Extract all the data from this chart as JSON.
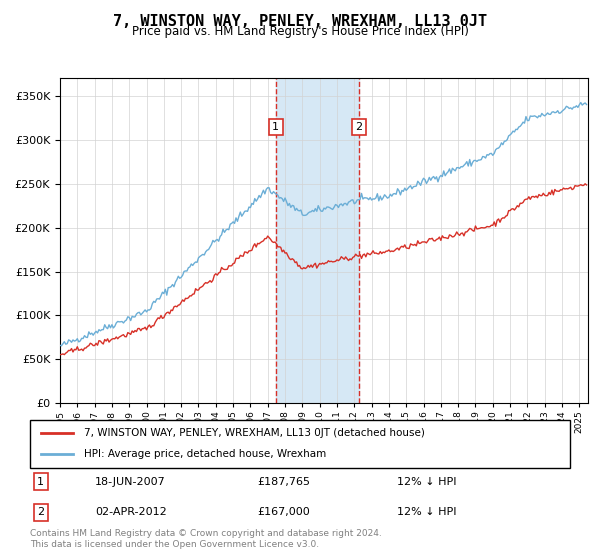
{
  "title": "7, WINSTON WAY, PENLEY, WREXHAM, LL13 0JT",
  "subtitle": "Price paid vs. HM Land Registry's House Price Index (HPI)",
  "legend_line1": "7, WINSTON WAY, PENLEY, WREXHAM, LL13 0JT (detached house)",
  "legend_line2": "HPI: Average price, detached house, Wrexham",
  "annotation1_label": "1",
  "annotation1_date": "18-JUN-2007",
  "annotation1_price": "£187,765",
  "annotation1_hpi": "12% ↓ HPI",
  "annotation2_label": "2",
  "annotation2_date": "02-APR-2012",
  "annotation2_price": "£167,000",
  "annotation2_hpi": "12% ↓ HPI",
  "footer": "Contains HM Land Registry data © Crown copyright and database right 2024.\nThis data is licensed under the Open Government Licence v3.0.",
  "hpi_color": "#6baed6",
  "price_color": "#d73027",
  "purchase1_x": 2007.46,
  "purchase2_x": 2012.25,
  "shade_color": "#d6e8f5",
  "ylim_min": 0,
  "ylim_max": 370000,
  "xlim_min": 1995.0,
  "xlim_max": 2025.5
}
